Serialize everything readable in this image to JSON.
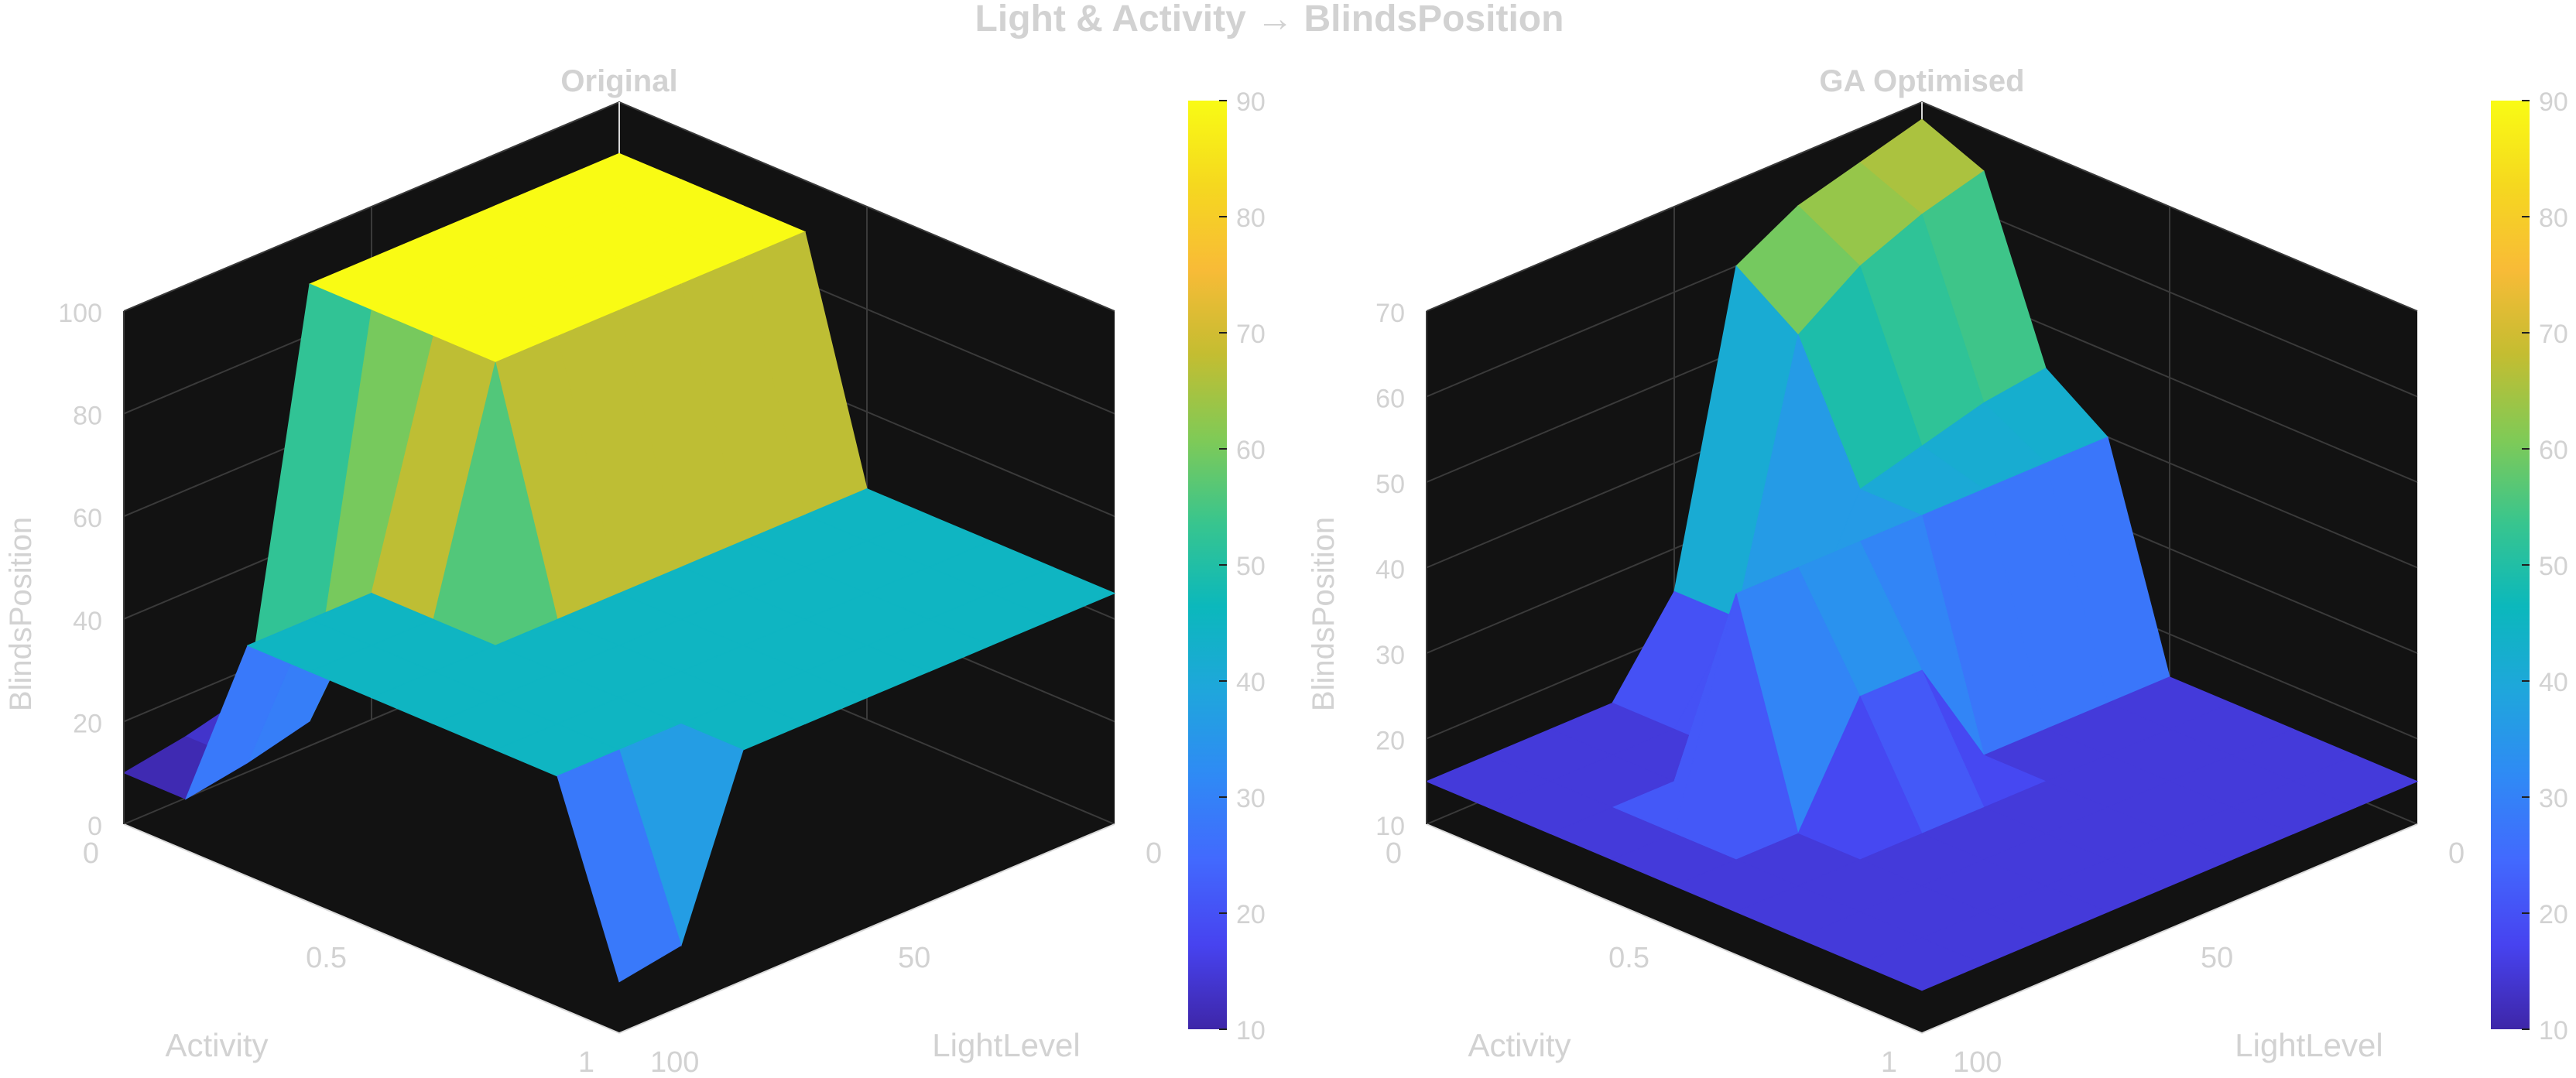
{
  "figure": {
    "title": "Light & Activity → BlindsPosition"
  },
  "colors": {
    "pane": "#121212",
    "grid": "#3a3a3a",
    "axis_line": "#d9d9d9",
    "text": "#d2d2d2",
    "colormap": [
      "#3e26a8",
      "#4743f0",
      "#4269fe",
      "#2f8af5",
      "#1fa6dc",
      "#0bb8bc",
      "#38c58e",
      "#80ca56",
      "#c4bd31",
      "#f8bb37",
      "#f5d81f",
      "#f9fb14"
    ]
  },
  "chart_data": [
    {
      "type": "surface",
      "title": "Original",
      "xlabel": "Activity",
      "ylabel": "LightLevel",
      "zlabel": "BlindsPosition",
      "x_ticks": [
        "0",
        "0.5",
        "1"
      ],
      "y_ticks": [
        "0",
        "50",
        "100"
      ],
      "z_ticks": [
        "0",
        "20",
        "40",
        "60",
        "80",
        "100"
      ],
      "xlim": [
        0,
        1
      ],
      "ylim": [
        100,
        0
      ],
      "zlim": [
        0,
        100
      ],
      "colorbar": {
        "ticks": [
          "10",
          "20",
          "30",
          "40",
          "50",
          "60",
          "70",
          "80",
          "90"
        ],
        "range": [
          10,
          90
        ]
      },
      "x": [
        0,
        0.125,
        0.25,
        0.375,
        0.5,
        0.625,
        0.75,
        0.875,
        1
      ],
      "y": [
        0,
        12.5,
        25,
        37.5,
        50,
        62.5,
        75,
        87.5,
        100
      ],
      "z": [
        [
          90,
          90,
          90,
          90,
          45,
          45,
          45,
          45,
          45
        ],
        [
          90,
          90,
          90,
          90,
          45,
          45,
          45,
          45,
          45
        ],
        [
          90,
          90,
          90,
          90,
          45,
          45,
          45,
          45,
          45
        ],
        [
          90,
          90,
          90,
          90,
          45,
          45,
          45,
          45,
          45
        ],
        [
          90,
          90,
          90,
          90,
          45,
          45,
          45,
          45,
          45
        ],
        [
          90,
          90,
          90,
          90,
          45,
          45,
          45,
          45,
          45
        ],
        [
          15,
          15,
          45,
          45,
          45,
          45,
          45,
          45,
          45
        ],
        [
          12,
          12,
          45,
          45,
          45,
          45,
          45,
          45,
          12
        ],
        [
          10,
          10,
          45,
          45,
          45,
          45,
          45,
          45,
          10
        ]
      ]
    },
    {
      "type": "surface",
      "title": "GA Optimised",
      "xlabel": "Activity",
      "ylabel": "LightLevel",
      "zlabel": "BlindsPosition",
      "x_ticks": [
        "0",
        "0.5",
        "1"
      ],
      "y_ticks": [
        "0",
        "50",
        "100"
      ],
      "z_ticks": [
        "10",
        "20",
        "30",
        "40",
        "50",
        "60",
        "70"
      ],
      "xlim": [
        0,
        1
      ],
      "ylim": [
        100,
        0
      ],
      "zlim": [
        10,
        70
      ],
      "colorbar": {
        "ticks": [
          "10",
          "20",
          "30",
          "40",
          "50",
          "60",
          "70",
          "80",
          "90"
        ],
        "range": [
          10,
          90
        ]
      },
      "x": [
        0,
        0.125,
        0.25,
        0.375,
        0.5,
        0.625,
        0.75,
        0.875,
        1
      ],
      "y": [
        0,
        12.5,
        25,
        37.5,
        50,
        62.5,
        75,
        87.5,
        100
      ],
      "z": [
        [
          68,
          65,
          45,
          40,
          15,
          15,
          15,
          15,
          15
        ],
        [
          66,
          63,
          44,
          40,
          15,
          15,
          15,
          15,
          15
        ],
        [
          64,
          60,
          42,
          40,
          15,
          15,
          15,
          15,
          15
        ],
        [
          60,
          55,
          40,
          40,
          15,
          15,
          15,
          15,
          15
        ],
        [
          25,
          25,
          25,
          40,
          28,
          15,
          15,
          15,
          15
        ],
        [
          15,
          15,
          15,
          40,
          28,
          15,
          15,
          15,
          15
        ],
        [
          15,
          15,
          15,
          40,
          15,
          15,
          15,
          15,
          15
        ],
        [
          15,
          15,
          15,
          15,
          15,
          15,
          15,
          15,
          15
        ],
        [
          15,
          15,
          15,
          15,
          15,
          15,
          15,
          15,
          15
        ]
      ]
    }
  ]
}
